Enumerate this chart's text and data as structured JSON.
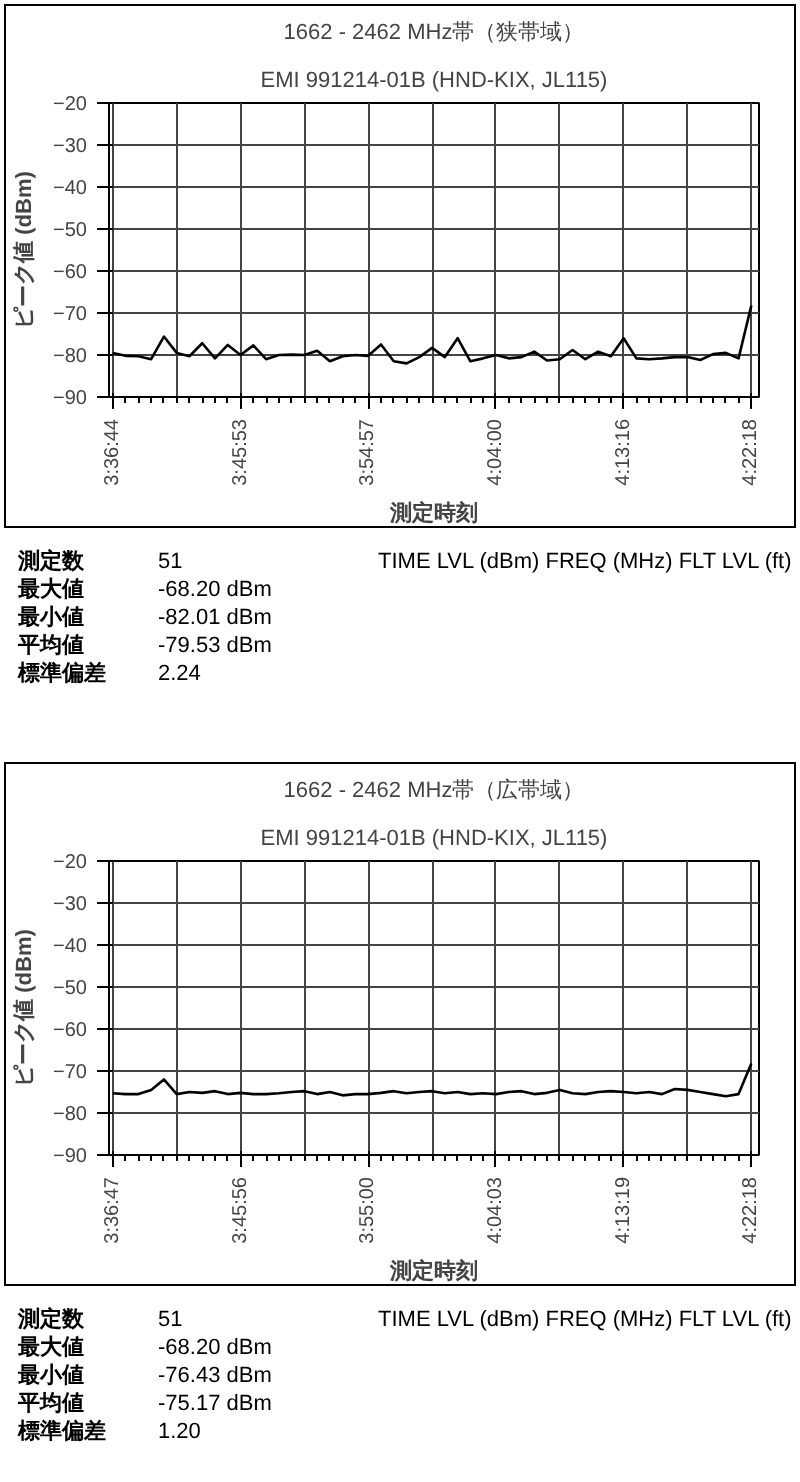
{
  "chart_data": [
    {
      "type": "line",
      "title": "1662 - 2462 MHz帯（狭帯域）",
      "subtitle": "EMI 991214-01B (HND-KIX, JL115)",
      "xlabel": "測定時刻",
      "ylabel": "ピーク値 (dBm)",
      "color": "#000000",
      "grid": true,
      "ylim": [
        -90,
        -20
      ],
      "yticks": [
        -90,
        -80,
        -70,
        -60,
        -50,
        -40,
        -30,
        -20
      ],
      "categories": [
        "3:36:44",
        null,
        null,
        null,
        null,
        null,
        null,
        null,
        null,
        null,
        "3:45:53",
        null,
        null,
        null,
        null,
        null,
        null,
        null,
        null,
        null,
        "3:54:57",
        null,
        null,
        null,
        null,
        null,
        null,
        null,
        null,
        null,
        "4:04:00",
        null,
        null,
        null,
        null,
        null,
        null,
        null,
        null,
        null,
        "4:13:16",
        null,
        null,
        null,
        null,
        null,
        null,
        null,
        null,
        null,
        "4:22:18"
      ],
      "values": [
        -79.5,
        -80.2,
        -80.3,
        -81.0,
        -75.6,
        -79.5,
        -80.3,
        -77.2,
        -80.8,
        -77.6,
        -80.0,
        -77.7,
        -81.0,
        -80.0,
        -79.9,
        -80.0,
        -79.0,
        -81.5,
        -80.3,
        -80.0,
        -80.2,
        -77.5,
        -81.5,
        -82.0,
        -80.5,
        -78.3,
        -80.5,
        -76.0,
        -81.5,
        -80.8,
        -80.0,
        -80.8,
        -80.5,
        -79.2,
        -81.3,
        -81.0,
        -78.8,
        -81.0,
        -79.2,
        -80.3,
        -76.0,
        -80.8,
        -81.0,
        -80.8,
        -80.5,
        -80.5,
        -81.2,
        -79.8,
        -79.5,
        -80.8,
        -68.2
      ],
      "annotations": [
        "TIME LVL (dBm) FREQ (MHz) FLT LVL (ft)",
        "測定数 51",
        "最大値 -68.20 dBm",
        "最小値 -82.01 dBm",
        "平均値 -79.53 dBm",
        "標準偏差 2.24"
      ]
    },
    {
      "type": "line",
      "title": "1662 - 2462 MHz帯（広帯域）",
      "subtitle": "EMI 991214-01B (HND-KIX, JL115)",
      "xlabel": "測定時刻",
      "ylabel": "ピーク値 (dBm)",
      "color": "#000000",
      "grid": true,
      "ylim": [
        -90,
        -20
      ],
      "yticks": [
        -90,
        -80,
        -70,
        -60,
        -50,
        -40,
        -30,
        -20
      ],
      "categories": [
        "3:36:47",
        null,
        null,
        null,
        null,
        null,
        null,
        null,
        null,
        null,
        "3:45:56",
        null,
        null,
        null,
        null,
        null,
        null,
        null,
        null,
        null,
        "3:55:00",
        null,
        null,
        null,
        null,
        null,
        null,
        null,
        null,
        null,
        "4:04:03",
        null,
        null,
        null,
        null,
        null,
        null,
        null,
        null,
        null,
        "4:13:19",
        null,
        null,
        null,
        null,
        null,
        null,
        null,
        null,
        null,
        "4:22:18"
      ],
      "values": [
        -75.3,
        -75.5,
        -75.5,
        -74.5,
        -72.0,
        -75.5,
        -75.0,
        -75.2,
        -74.8,
        -75.5,
        -75.2,
        -75.5,
        -75.5,
        -75.3,
        -75.0,
        -74.8,
        -75.5,
        -75.0,
        -75.8,
        -75.5,
        -75.5,
        -75.2,
        -74.8,
        -75.3,
        -75.0,
        -74.8,
        -75.3,
        -75.0,
        -75.5,
        -75.3,
        -75.5,
        -75.0,
        -74.8,
        -75.5,
        -75.2,
        -74.5,
        -75.3,
        -75.5,
        -75.0,
        -74.8,
        -75.0,
        -75.3,
        -75.0,
        -75.5,
        -74.3,
        -74.5,
        -75.0,
        -75.5,
        -76.0,
        -75.5,
        -68.2
      ],
      "annotations": [
        "TIME LVL (dBm) FREQ (MHz) FLT LVL (ft)",
        "測定数 51",
        "最大値 -68.20 dBm",
        "最小値 -76.43 dBm",
        "平均値 -75.17 dBm",
        "標準偏差 1.20"
      ]
    }
  ]
}
